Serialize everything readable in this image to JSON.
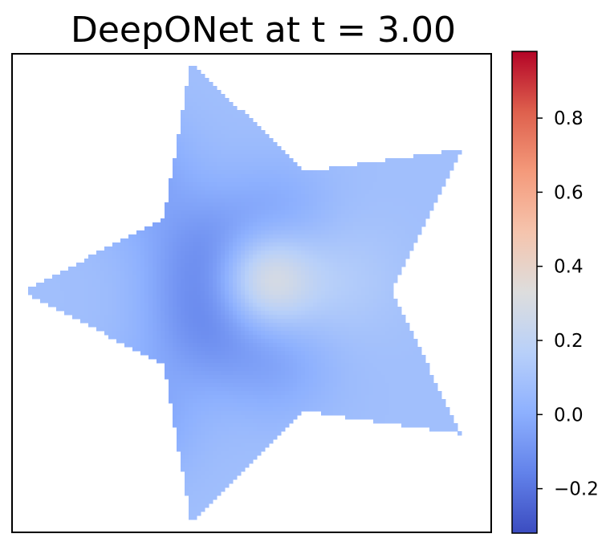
{
  "chart_data": {
    "type": "heatmap",
    "title": "DeepONet at t = 3.00",
    "xlabel": "",
    "ylabel": "",
    "xticks": [],
    "yticks": [],
    "domain_shape": "five-pointed star",
    "colormap": "coolwarm",
    "colorbar": {
      "vmin": -0.32,
      "vmax": 0.98,
      "ticks": [
        -0.2,
        0.0,
        0.2,
        0.4,
        0.6,
        0.8
      ],
      "tick_labels": [
        "−0.2",
        "0.0",
        "0.2",
        "0.4",
        "0.6",
        "0.8"
      ]
    },
    "field": {
      "background_value": 0.08,
      "features": [
        {
          "kind": "peak",
          "x": 0.0,
          "y": 0.05,
          "value": 0.38
        },
        {
          "kind": "trough",
          "x": -0.25,
          "y": 0.15,
          "value": -0.08
        },
        {
          "kind": "trough",
          "x": -0.25,
          "y": -0.15,
          "value": -0.08
        },
        {
          "kind": "trough",
          "x": 0.05,
          "y": 0.3,
          "value": -0.02
        },
        {
          "kind": "trough",
          "x": 0.05,
          "y": -0.3,
          "value": -0.02
        },
        {
          "kind": "trough",
          "x": -0.55,
          "y": 0.5,
          "value": -0.05
        },
        {
          "kind": "trough",
          "x": -0.55,
          "y": -0.55,
          "value": -0.05
        },
        {
          "kind": "bright",
          "x": 0.3,
          "y": 0.05,
          "value": 0.15
        }
      ]
    }
  }
}
